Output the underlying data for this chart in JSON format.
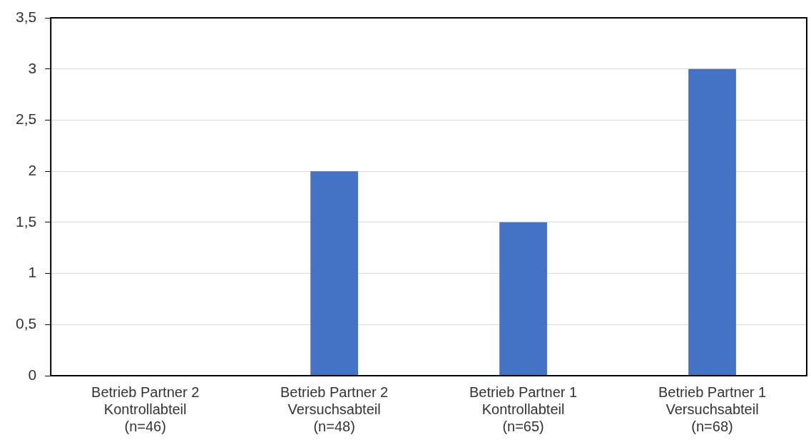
{
  "chart_data": {
    "type": "bar",
    "categories": [
      "Betrieb Partner 2\nKontrollabteil\n(n=46)",
      "Betrieb Partner 2\nVersuchsabteil\n(n=48)",
      "Betrieb Partner 1\nKontrollabteil\n(n=65)",
      "Betrieb Partner 1\nVersuchsabteil\n(n=68)"
    ],
    "values": [
      0,
      2,
      1.5,
      3
    ],
    "color": "#4472c4",
    "ylim": [
      0,
      3.5
    ],
    "yticks": [
      {
        "value": 0,
        "label": "0"
      },
      {
        "value": 0.5,
        "label": "0,5"
      },
      {
        "value": 1,
        "label": "1"
      },
      {
        "value": 1.5,
        "label": "1,5"
      },
      {
        "value": 2,
        "label": "2"
      },
      {
        "value": 2.5,
        "label": "2,5"
      },
      {
        "value": 3,
        "label": "3"
      },
      {
        "value": 3.5,
        "label": "3,5"
      }
    ],
    "grid": "y",
    "legend": false
  }
}
